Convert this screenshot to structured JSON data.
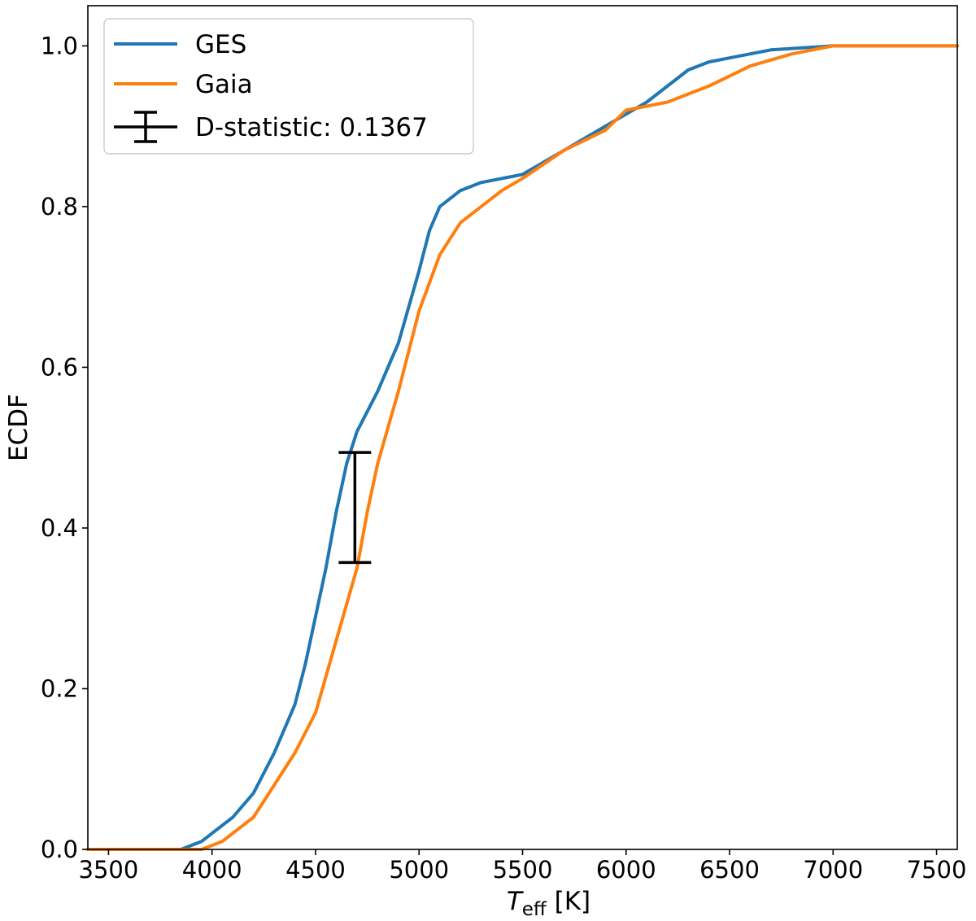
{
  "chart_data": {
    "type": "line",
    "title": "",
    "xlabel": {
      "main": "T",
      "sub": "eff",
      "unit": " [K]"
    },
    "ylabel": "ECDF",
    "xlim": [
      3400,
      7600
    ],
    "ylim": [
      0,
      1.05
    ],
    "x_ticks": [
      3500,
      4000,
      4500,
      5000,
      5500,
      6000,
      6500,
      7000,
      7500
    ],
    "y_ticks": [
      0.0,
      0.2,
      0.4,
      0.6,
      0.8,
      1.0
    ],
    "x_tick_labels": [
      "3500",
      "4000",
      "4500",
      "5000",
      "5500",
      "6000",
      "6500",
      "7000",
      "7500"
    ],
    "y_tick_labels": [
      "0.0",
      "0.2",
      "0.4",
      "0.6",
      "0.8",
      "1.0"
    ],
    "legend_position": "top-left",
    "series": [
      {
        "name": "GES",
        "color": "#1f77b4",
        "points": [
          [
            3400,
            0
          ],
          [
            3850,
            0
          ],
          [
            3950,
            0.01
          ],
          [
            4000,
            0.02
          ],
          [
            4100,
            0.04
          ],
          [
            4200,
            0.07
          ],
          [
            4300,
            0.12
          ],
          [
            4400,
            0.18
          ],
          [
            4450,
            0.23
          ],
          [
            4500,
            0.29
          ],
          [
            4550,
            0.35
          ],
          [
            4600,
            0.42
          ],
          [
            4650,
            0.48
          ],
          [
            4700,
            0.52
          ],
          [
            4800,
            0.57
          ],
          [
            4900,
            0.63
          ],
          [
            5000,
            0.72
          ],
          [
            5050,
            0.77
          ],
          [
            5100,
            0.8
          ],
          [
            5200,
            0.82
          ],
          [
            5300,
            0.83
          ],
          [
            5500,
            0.84
          ],
          [
            5700,
            0.87
          ],
          [
            5900,
            0.9
          ],
          [
            6100,
            0.93
          ],
          [
            6300,
            0.97
          ],
          [
            6400,
            0.98
          ],
          [
            6500,
            0.985
          ],
          [
            6700,
            0.995
          ],
          [
            7000,
            1.0
          ],
          [
            7600,
            1.0
          ]
        ]
      },
      {
        "name": "Gaia",
        "color": "#ff7f0e",
        "points": [
          [
            3400,
            0
          ],
          [
            3950,
            0
          ],
          [
            4050,
            0.01
          ],
          [
            4200,
            0.04
          ],
          [
            4300,
            0.08
          ],
          [
            4400,
            0.12
          ],
          [
            4500,
            0.17
          ],
          [
            4600,
            0.26
          ],
          [
            4700,
            0.35
          ],
          [
            4750,
            0.42
          ],
          [
            4800,
            0.48
          ],
          [
            4900,
            0.57
          ],
          [
            5000,
            0.67
          ],
          [
            5100,
            0.74
          ],
          [
            5200,
            0.78
          ],
          [
            5300,
            0.8
          ],
          [
            5400,
            0.82
          ],
          [
            5500,
            0.835
          ],
          [
            5700,
            0.87
          ],
          [
            5900,
            0.895
          ],
          [
            6000,
            0.92
          ],
          [
            6200,
            0.93
          ],
          [
            6400,
            0.95
          ],
          [
            6600,
            0.975
          ],
          [
            6800,
            0.99
          ],
          [
            7000,
            1.0
          ],
          [
            7600,
            1.0
          ]
        ]
      }
    ],
    "errorbar": {
      "name": "D-statistic: 0.1367",
      "color": "#000000",
      "x": 4690,
      "y_low": 0.357,
      "y_high": 0.494
    }
  }
}
